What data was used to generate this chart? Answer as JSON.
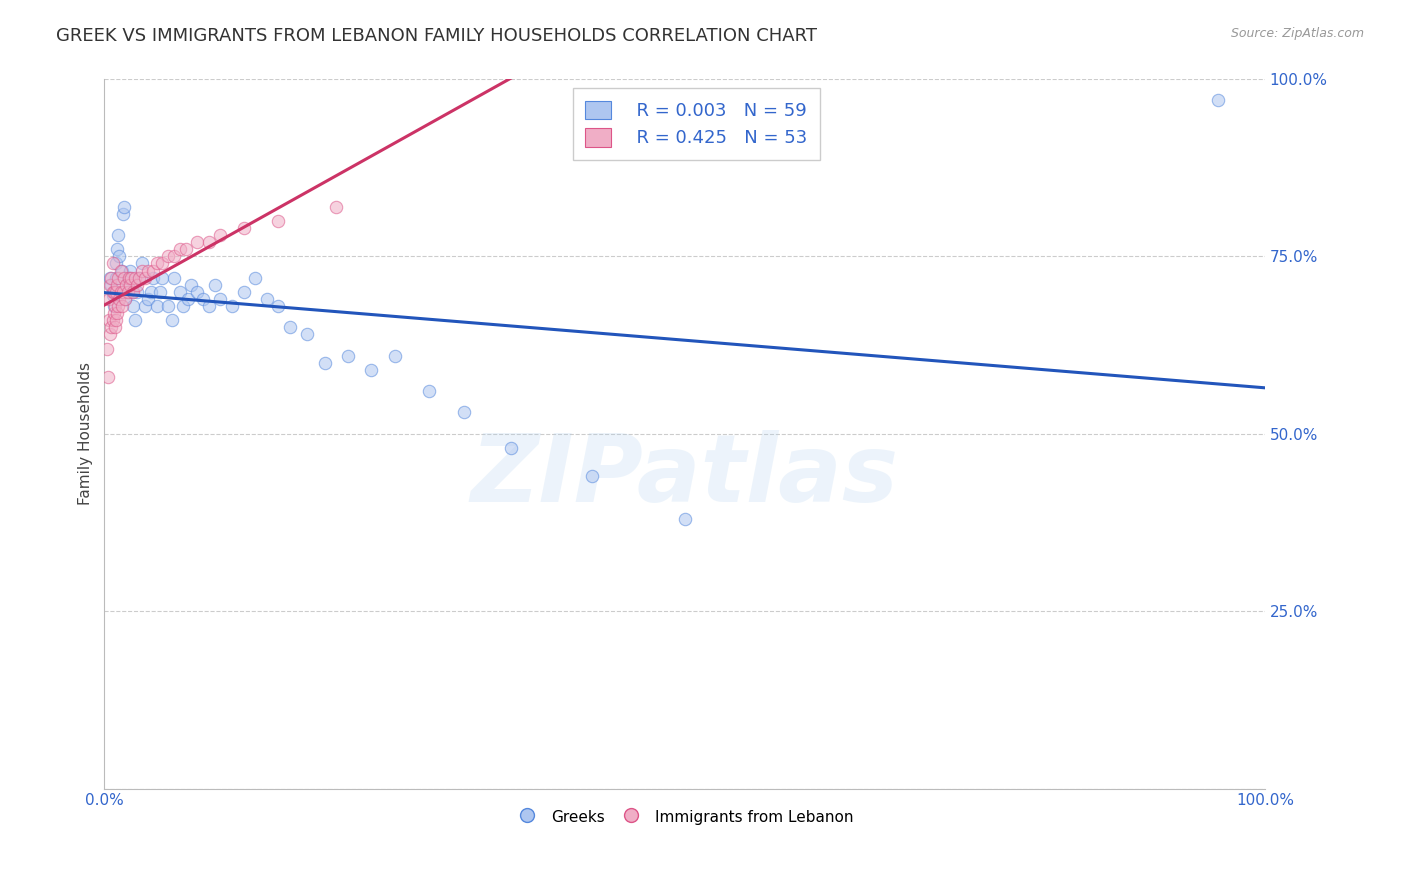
{
  "title": "GREEK VS IMMIGRANTS FROM LEBANON FAMILY HOUSEHOLDS CORRELATION CHART",
  "source": "Source: ZipAtlas.com",
  "ylabel": "Family Households",
  "watermark": "ZIPatlas",
  "xlim": [
    0.0,
    1.0
  ],
  "ylim": [
    0.0,
    1.0
  ],
  "xticks": [
    0.0,
    0.25,
    0.5,
    0.75,
    1.0
  ],
  "yticks": [
    0.0,
    0.25,
    0.5,
    0.75,
    1.0
  ],
  "grid_color": "#cccccc",
  "background_color": "#ffffff",
  "greek_color": "#aec6f0",
  "lebanon_color": "#f0aec6",
  "greek_line_color": "#2255bb",
  "lebanon_line_color": "#cc3366",
  "greek_edge_color": "#5588dd",
  "lebanon_edge_color": "#dd5588",
  "legend_R_greek": "R = 0.003",
  "legend_N_greek": "N = 59",
  "legend_R_lebanon": "R = 0.425",
  "legend_N_lebanon": "N = 53",
  "greek_scatter_x": [
    0.005,
    0.006,
    0.007,
    0.008,
    0.009,
    0.01,
    0.01,
    0.011,
    0.012,
    0.013,
    0.015,
    0.016,
    0.017,
    0.018,
    0.02,
    0.021,
    0.022,
    0.024,
    0.025,
    0.026,
    0.028,
    0.03,
    0.032,
    0.035,
    0.038,
    0.04,
    0.042,
    0.045,
    0.048,
    0.05,
    0.055,
    0.058,
    0.06,
    0.065,
    0.068,
    0.072,
    0.075,
    0.08,
    0.085,
    0.09,
    0.095,
    0.1,
    0.11,
    0.12,
    0.13,
    0.14,
    0.15,
    0.16,
    0.175,
    0.19,
    0.21,
    0.23,
    0.25,
    0.28,
    0.31,
    0.35,
    0.42,
    0.5,
    0.96
  ],
  "greek_scatter_y": [
    0.72,
    0.71,
    0.695,
    0.68,
    0.7,
    0.72,
    0.74,
    0.76,
    0.78,
    0.75,
    0.73,
    0.81,
    0.82,
    0.69,
    0.71,
    0.72,
    0.73,
    0.7,
    0.68,
    0.66,
    0.7,
    0.72,
    0.74,
    0.68,
    0.69,
    0.7,
    0.72,
    0.68,
    0.7,
    0.72,
    0.68,
    0.66,
    0.72,
    0.7,
    0.68,
    0.69,
    0.71,
    0.7,
    0.69,
    0.68,
    0.71,
    0.69,
    0.68,
    0.7,
    0.72,
    0.69,
    0.68,
    0.65,
    0.64,
    0.6,
    0.61,
    0.59,
    0.61,
    0.56,
    0.53,
    0.48,
    0.44,
    0.38,
    0.97
  ],
  "lebanon_scatter_x": [
    0.002,
    0.003,
    0.004,
    0.004,
    0.005,
    0.005,
    0.006,
    0.006,
    0.007,
    0.007,
    0.007,
    0.008,
    0.008,
    0.009,
    0.009,
    0.01,
    0.01,
    0.011,
    0.011,
    0.012,
    0.012,
    0.013,
    0.014,
    0.014,
    0.015,
    0.016,
    0.017,
    0.018,
    0.019,
    0.02,
    0.021,
    0.022,
    0.023,
    0.025,
    0.026,
    0.028,
    0.03,
    0.032,
    0.035,
    0.038,
    0.042,
    0.045,
    0.05,
    0.055,
    0.06,
    0.065,
    0.07,
    0.08,
    0.09,
    0.1,
    0.12,
    0.15,
    0.2
  ],
  "lebanon_scatter_y": [
    0.62,
    0.58,
    0.66,
    0.69,
    0.64,
    0.71,
    0.65,
    0.72,
    0.66,
    0.7,
    0.74,
    0.67,
    0.7,
    0.65,
    0.68,
    0.66,
    0.7,
    0.67,
    0.71,
    0.68,
    0.72,
    0.69,
    0.7,
    0.73,
    0.68,
    0.7,
    0.72,
    0.69,
    0.71,
    0.7,
    0.72,
    0.71,
    0.72,
    0.7,
    0.72,
    0.71,
    0.72,
    0.73,
    0.72,
    0.73,
    0.73,
    0.74,
    0.74,
    0.75,
    0.75,
    0.76,
    0.76,
    0.77,
    0.77,
    0.78,
    0.79,
    0.8,
    0.82
  ],
  "title_fontsize": 13,
  "axis_label_fontsize": 11,
  "tick_fontsize": 11,
  "scatter_size": 80,
  "scatter_alpha": 0.55,
  "scatter_linewidth": 0.8
}
